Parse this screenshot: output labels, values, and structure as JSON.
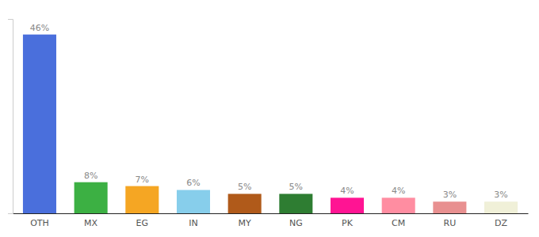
{
  "chart_data": {
    "type": "bar",
    "categories": [
      "OTH",
      "MX",
      "EG",
      "IN",
      "MY",
      "NG",
      "PK",
      "CM",
      "RU",
      "DZ"
    ],
    "values": [
      46,
      8,
      7,
      6,
      5,
      5,
      4,
      4,
      3,
      3
    ],
    "value_labels": [
      "46%",
      "8%",
      "7%",
      "6%",
      "5%",
      "5%",
      "4%",
      "4%",
      "3%",
      "3%"
    ],
    "colors": [
      "#4a6fdc",
      "#3cb043",
      "#f5a623",
      "#87ceeb",
      "#b05a1a",
      "#2e7d32",
      "#ff1493",
      "#ff8da1",
      "#e89090",
      "#f0f0d8"
    ],
    "ylim": [
      0,
      50
    ],
    "data_labels": true,
    "tick_labels": "x",
    "grid": false
  }
}
